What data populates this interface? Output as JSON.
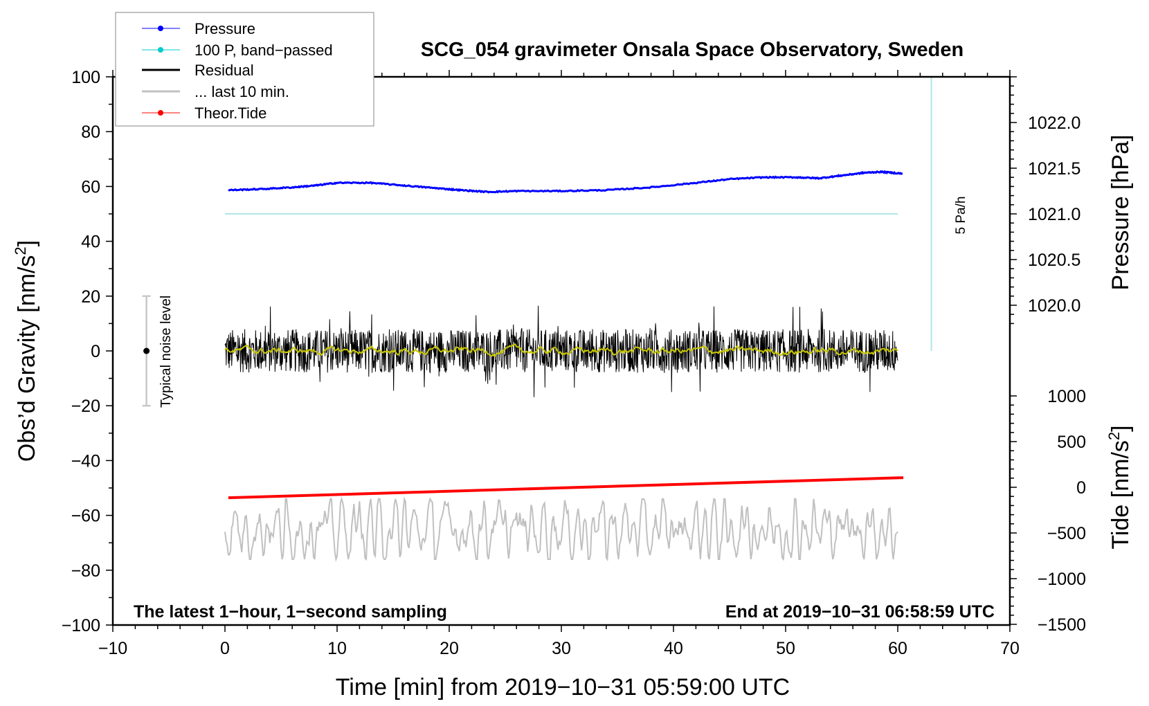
{
  "chart_data": {
    "type": "line",
    "title": "SCG_054 gravimeter Onsala Space Observatory, Sweden",
    "xlabel": "Time [min] from 2019−10−31 05:59:00 UTC",
    "ylabel": "Obs’d Gravity [nm/s",
    "ylabel_sup": "2",
    "ylabel_end": "]",
    "y2label_pressure": "Pressure [hPa]",
    "y2label_tide": "Tide [nm/s",
    "y2label_tide_sup": "2",
    "y2label_tide_end": "]",
    "xlim": [
      -10,
      70
    ],
    "ylim": [
      -100,
      100
    ],
    "pressure_lim": [
      1019.75,
      1022.5
    ],
    "tide_lim": [
      -1500,
      1000
    ],
    "x_ticks": [
      "−10",
      "0",
      "10",
      "20",
      "30",
      "40",
      "50",
      "60",
      "70"
    ],
    "x_tick_values": [
      -10,
      0,
      10,
      20,
      30,
      40,
      50,
      60,
      70
    ],
    "y_ticks": [
      "100",
      "80",
      "60",
      "40",
      "20",
      "0",
      "−20",
      "−40",
      "−60",
      "−80",
      "−100"
    ],
    "y_tick_values": [
      100,
      80,
      60,
      40,
      20,
      0,
      -20,
      -40,
      -60,
      -80,
      -100
    ],
    "pressure_ticks": [
      "1022.0",
      "1021.5",
      "1021.0",
      "1020.5",
      "1020.0"
    ],
    "pressure_tick_values": [
      1022.0,
      1021.5,
      1021.0,
      1020.5,
      1020.0
    ],
    "tide_ticks": [
      "1000",
      "500",
      "0",
      "−500",
      "−1000",
      "−1500"
    ],
    "tide_tick_values": [
      1000,
      500,
      0,
      -500,
      -1000,
      -1500
    ],
    "legend": {
      "placement": "top-left",
      "items": [
        {
          "label": "Pressure",
          "color": "#0000ff",
          "marker": true,
          "width": 1
        },
        {
          "label": "100 P, band−passed",
          "color": "#00cccc",
          "marker": true,
          "width": 1
        },
        {
          "label": "Residual",
          "color": "#000000",
          "marker": false,
          "width": 3
        },
        {
          "label": "... last 10 min.",
          "color": "#c0c0c0",
          "marker": false,
          "width": 3
        },
        {
          "label": "Theor.Tide",
          "color": "#ff0000",
          "marker": true,
          "width": 1
        }
      ]
    },
    "series": [
      {
        "name": "Pressure",
        "axis": "pressure_hPa",
        "color": "#0000ff",
        "x": [
          0.3,
          3,
          6,
          8,
          10,
          13,
          16,
          19,
          21,
          23.5,
          26,
          30,
          34,
          38,
          42,
          45,
          48,
          51,
          53,
          55,
          57,
          58.5,
          60.5
        ],
        "values": [
          1021.26,
          1021.27,
          1021.29,
          1021.31,
          1021.34,
          1021.34,
          1021.31,
          1021.28,
          1021.26,
          1021.24,
          1021.25,
          1021.25,
          1021.26,
          1021.29,
          1021.34,
          1021.38,
          1021.4,
          1021.4,
          1021.39,
          1021.42,
          1021.45,
          1021.46,
          1021.44
        ]
      },
      {
        "name": "100 P, band-passed",
        "axis": "gravity",
        "color": "#b0e4e6",
        "x": [
          0,
          60
        ],
        "values": [
          50,
          50
        ]
      },
      {
        "name": "Residual",
        "axis": "gravity",
        "color": "#000000",
        "x_range": [
          0,
          60
        ],
        "mean": 0,
        "typical_amplitude": 8,
        "max_amplitude": 17
      },
      {
        "name": "Residual smoothed",
        "axis": "gravity",
        "color": "#c8c800",
        "x_range": [
          0,
          60
        ],
        "mean": 0,
        "typical_amplitude": 1.5
      },
      {
        "name": "... last 10 min.",
        "axis": "gravity",
        "color": "#c0c0c0",
        "x_range": [
          0,
          60
        ],
        "mean": -65,
        "typical_amplitude": 6,
        "max_amplitude": 11
      },
      {
        "name": "Theor.Tide",
        "axis": "tide",
        "color": "#ff0000",
        "x": [
          0.3,
          60.5
        ],
        "values": [
          -115,
          105
        ]
      }
    ],
    "annotations": {
      "rate_label": "5 Pa/h",
      "rate_line": {
        "x": 63,
        "from_gravity": 0,
        "to_gravity": 100
      },
      "noise_label": "Typical noise level",
      "noise_bar": {
        "x": -7,
        "center": 0,
        "half_range": 20
      },
      "bottom_left": "The latest 1−hour, 1−second sampling",
      "bottom_right": "End at 2019−10−31 06:58:59 UTC"
    }
  }
}
